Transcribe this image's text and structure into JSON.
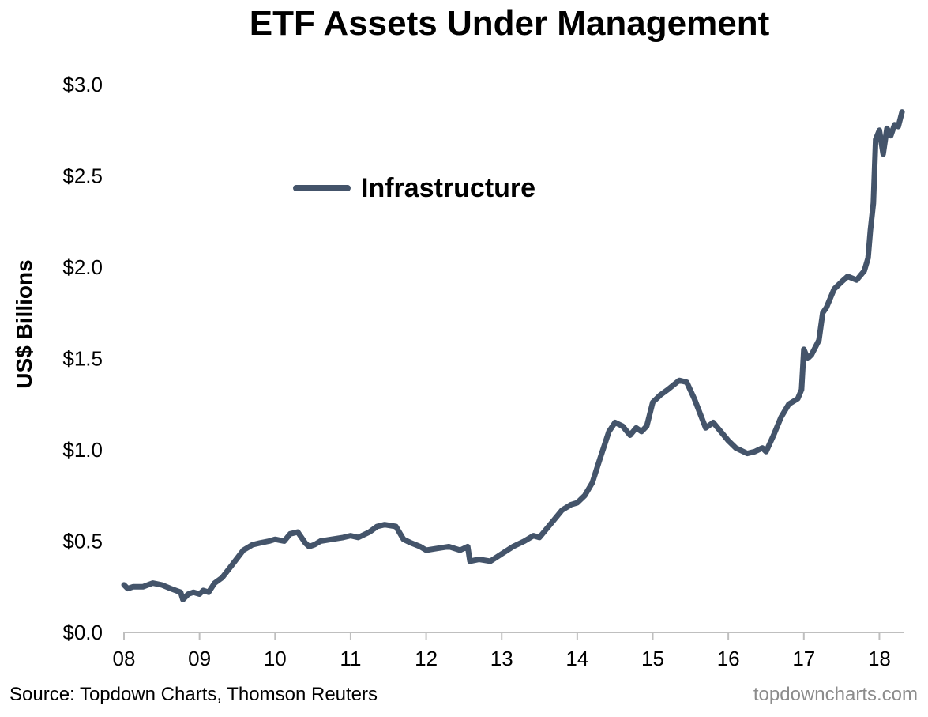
{
  "chart_data": {
    "type": "line",
    "title": "ETF Assets Under Management",
    "ylabel": "US$ Billions",
    "xlabel": "",
    "ylim": [
      0,
      3.0
    ],
    "xlim": [
      2008,
      2018.33
    ],
    "y_ticks": [
      0,
      0.5,
      1.0,
      1.5,
      2.0,
      2.5,
      3.0
    ],
    "y_tick_labels": [
      "$0.0",
      "$0.5",
      "$1.0",
      "$1.5",
      "$2.0",
      "$2.5",
      "$3.0"
    ],
    "x_ticks": [
      2008,
      2009,
      2010,
      2011,
      2012,
      2013,
      2014,
      2015,
      2016,
      2017,
      2018
    ],
    "x_tick_labels": [
      "08",
      "09",
      "10",
      "11",
      "12",
      "13",
      "14",
      "15",
      "16",
      "17",
      "18"
    ],
    "grid": false,
    "legend_position": "top-center",
    "series": [
      {
        "name": "Infrastructure",
        "color": "#44546a",
        "x": [
          2008.0,
          2008.05,
          2008.12,
          2008.25,
          2008.38,
          2008.5,
          2008.62,
          2008.75,
          2008.78,
          2008.85,
          2008.92,
          2009.0,
          2009.05,
          2009.12,
          2009.2,
          2009.3,
          2009.45,
          2009.58,
          2009.7,
          2009.8,
          2009.92,
          2010.0,
          2010.12,
          2010.2,
          2010.3,
          2010.4,
          2010.45,
          2010.52,
          2010.6,
          2010.75,
          2010.9,
          2011.0,
          2011.1,
          2011.25,
          2011.35,
          2011.45,
          2011.6,
          2011.7,
          2011.8,
          2011.92,
          2012.0,
          2012.15,
          2012.3,
          2012.45,
          2012.55,
          2012.58,
          2012.7,
          2012.85,
          2013.0,
          2013.15,
          2013.3,
          2013.42,
          2013.5,
          2013.58,
          2013.7,
          2013.8,
          2013.92,
          2014.0,
          2014.1,
          2014.2,
          2014.3,
          2014.42,
          2014.5,
          2014.6,
          2014.7,
          2014.78,
          2014.85,
          2014.92,
          2015.0,
          2015.1,
          2015.2,
          2015.35,
          2015.45,
          2015.55,
          2015.7,
          2015.8,
          2015.9,
          2016.0,
          2016.1,
          2016.25,
          2016.35,
          2016.45,
          2016.5,
          2016.6,
          2016.7,
          2016.8,
          2016.92,
          2016.97,
          2017.0,
          2017.05,
          2017.1,
          2017.2,
          2017.25,
          2017.3,
          2017.4,
          2017.5,
          2017.58,
          2017.7,
          2017.8,
          2017.85,
          2017.88,
          2017.92,
          2017.95,
          2018.0,
          2018.05,
          2018.1,
          2018.15,
          2018.2,
          2018.25,
          2018.3
        ],
        "values": [
          0.26,
          0.24,
          0.25,
          0.25,
          0.27,
          0.26,
          0.24,
          0.22,
          0.18,
          0.21,
          0.22,
          0.21,
          0.23,
          0.22,
          0.27,
          0.3,
          0.38,
          0.45,
          0.48,
          0.49,
          0.5,
          0.51,
          0.5,
          0.54,
          0.55,
          0.49,
          0.47,
          0.48,
          0.5,
          0.51,
          0.52,
          0.53,
          0.52,
          0.55,
          0.58,
          0.59,
          0.58,
          0.51,
          0.49,
          0.47,
          0.45,
          0.46,
          0.47,
          0.45,
          0.47,
          0.39,
          0.4,
          0.39,
          0.43,
          0.47,
          0.5,
          0.53,
          0.52,
          0.56,
          0.62,
          0.67,
          0.7,
          0.71,
          0.75,
          0.82,
          0.95,
          1.1,
          1.15,
          1.13,
          1.08,
          1.12,
          1.1,
          1.13,
          1.26,
          1.3,
          1.33,
          1.38,
          1.37,
          1.28,
          1.12,
          1.15,
          1.1,
          1.05,
          1.01,
          0.98,
          0.99,
          1.01,
          0.99,
          1.08,
          1.18,
          1.25,
          1.28,
          1.33,
          1.55,
          1.5,
          1.52,
          1.6,
          1.75,
          1.78,
          1.88,
          1.92,
          1.95,
          1.93,
          1.98,
          2.05,
          2.2,
          2.35,
          2.7,
          2.75,
          2.62,
          2.76,
          2.72,
          2.78,
          2.77,
          2.85
        ]
      }
    ]
  },
  "footer": {
    "source": "Source: Topdown Charts, Thomson Reuters",
    "watermark": "topdowncharts.com"
  }
}
